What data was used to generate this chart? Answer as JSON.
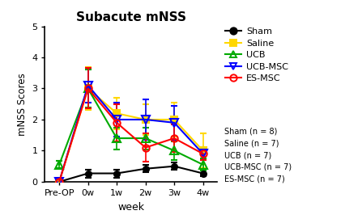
{
  "title": "Subacute mNSS",
  "xlabel": "week",
  "ylabel": "mNSS Scores",
  "x_labels": [
    "Pre-OP",
    "0w",
    "1w",
    "2w",
    "3w",
    "4w"
  ],
  "x_vals": [
    0,
    1,
    2,
    3,
    4,
    5
  ],
  "ylim": [
    0,
    5
  ],
  "yticks": [
    0,
    1,
    2,
    3,
    4,
    5
  ],
  "series": [
    {
      "label": "Sham",
      "color": "#000000",
      "marker": "o",
      "mfc": "black",
      "mec": "black",
      "values": [
        0.0,
        0.27,
        0.27,
        0.42,
        0.5,
        0.27
      ],
      "yerr": [
        0.0,
        0.13,
        0.13,
        0.12,
        0.12,
        0.1
      ]
    },
    {
      "label": "Saline",
      "color": "#FFD700",
      "marker": "s",
      "mfc": "#FFD700",
      "mec": "#FFD700",
      "values": [
        0.0,
        3.0,
        2.2,
        2.0,
        2.0,
        1.0
      ],
      "yerr": [
        0.0,
        0.7,
        0.5,
        0.5,
        0.55,
        0.55
      ]
    },
    {
      "label": "UCB",
      "color": "#00AA00",
      "marker": "^",
      "mfc": "none",
      "mec": "#00AA00",
      "values": [
        0.55,
        3.0,
        1.4,
        1.4,
        1.0,
        0.55
      ],
      "yerr": [
        0.12,
        0.6,
        0.35,
        0.35,
        0.3,
        0.2
      ]
    },
    {
      "label": "UCB-MSC",
      "color": "#0000FF",
      "marker": "v",
      "mfc": "none",
      "mec": "#0000FF",
      "values": [
        0.0,
        3.1,
        2.0,
        2.0,
        1.9,
        0.9
      ],
      "yerr": [
        0.0,
        0.55,
        0.55,
        0.65,
        0.55,
        0.2
      ]
    },
    {
      "label": "ES-MSC",
      "color": "#FF0000",
      "marker": "o",
      "mfc": "none",
      "mec": "#FF0000",
      "values": [
        0.0,
        3.0,
        1.9,
        1.1,
        1.4,
        0.9
      ],
      "yerr": [
        0.0,
        0.65,
        0.6,
        0.45,
        0.45,
        0.2
      ]
    }
  ],
  "legend_main": [
    "Sham",
    "Saline",
    "UCB",
    "UCB-MSC",
    "ES-MSC"
  ],
  "legend_n": [
    "Sham (n = 8)",
    "Saline (n = 7)",
    "UCB (n = 7)",
    "UCB-MSC (n = 7)",
    "ES-MSC (n = 7)"
  ],
  "marker_sizes": [
    5,
    6,
    7,
    7,
    6
  ],
  "marker_ew": [
    1.5,
    1.5,
    1.5,
    1.5,
    1.5
  ]
}
